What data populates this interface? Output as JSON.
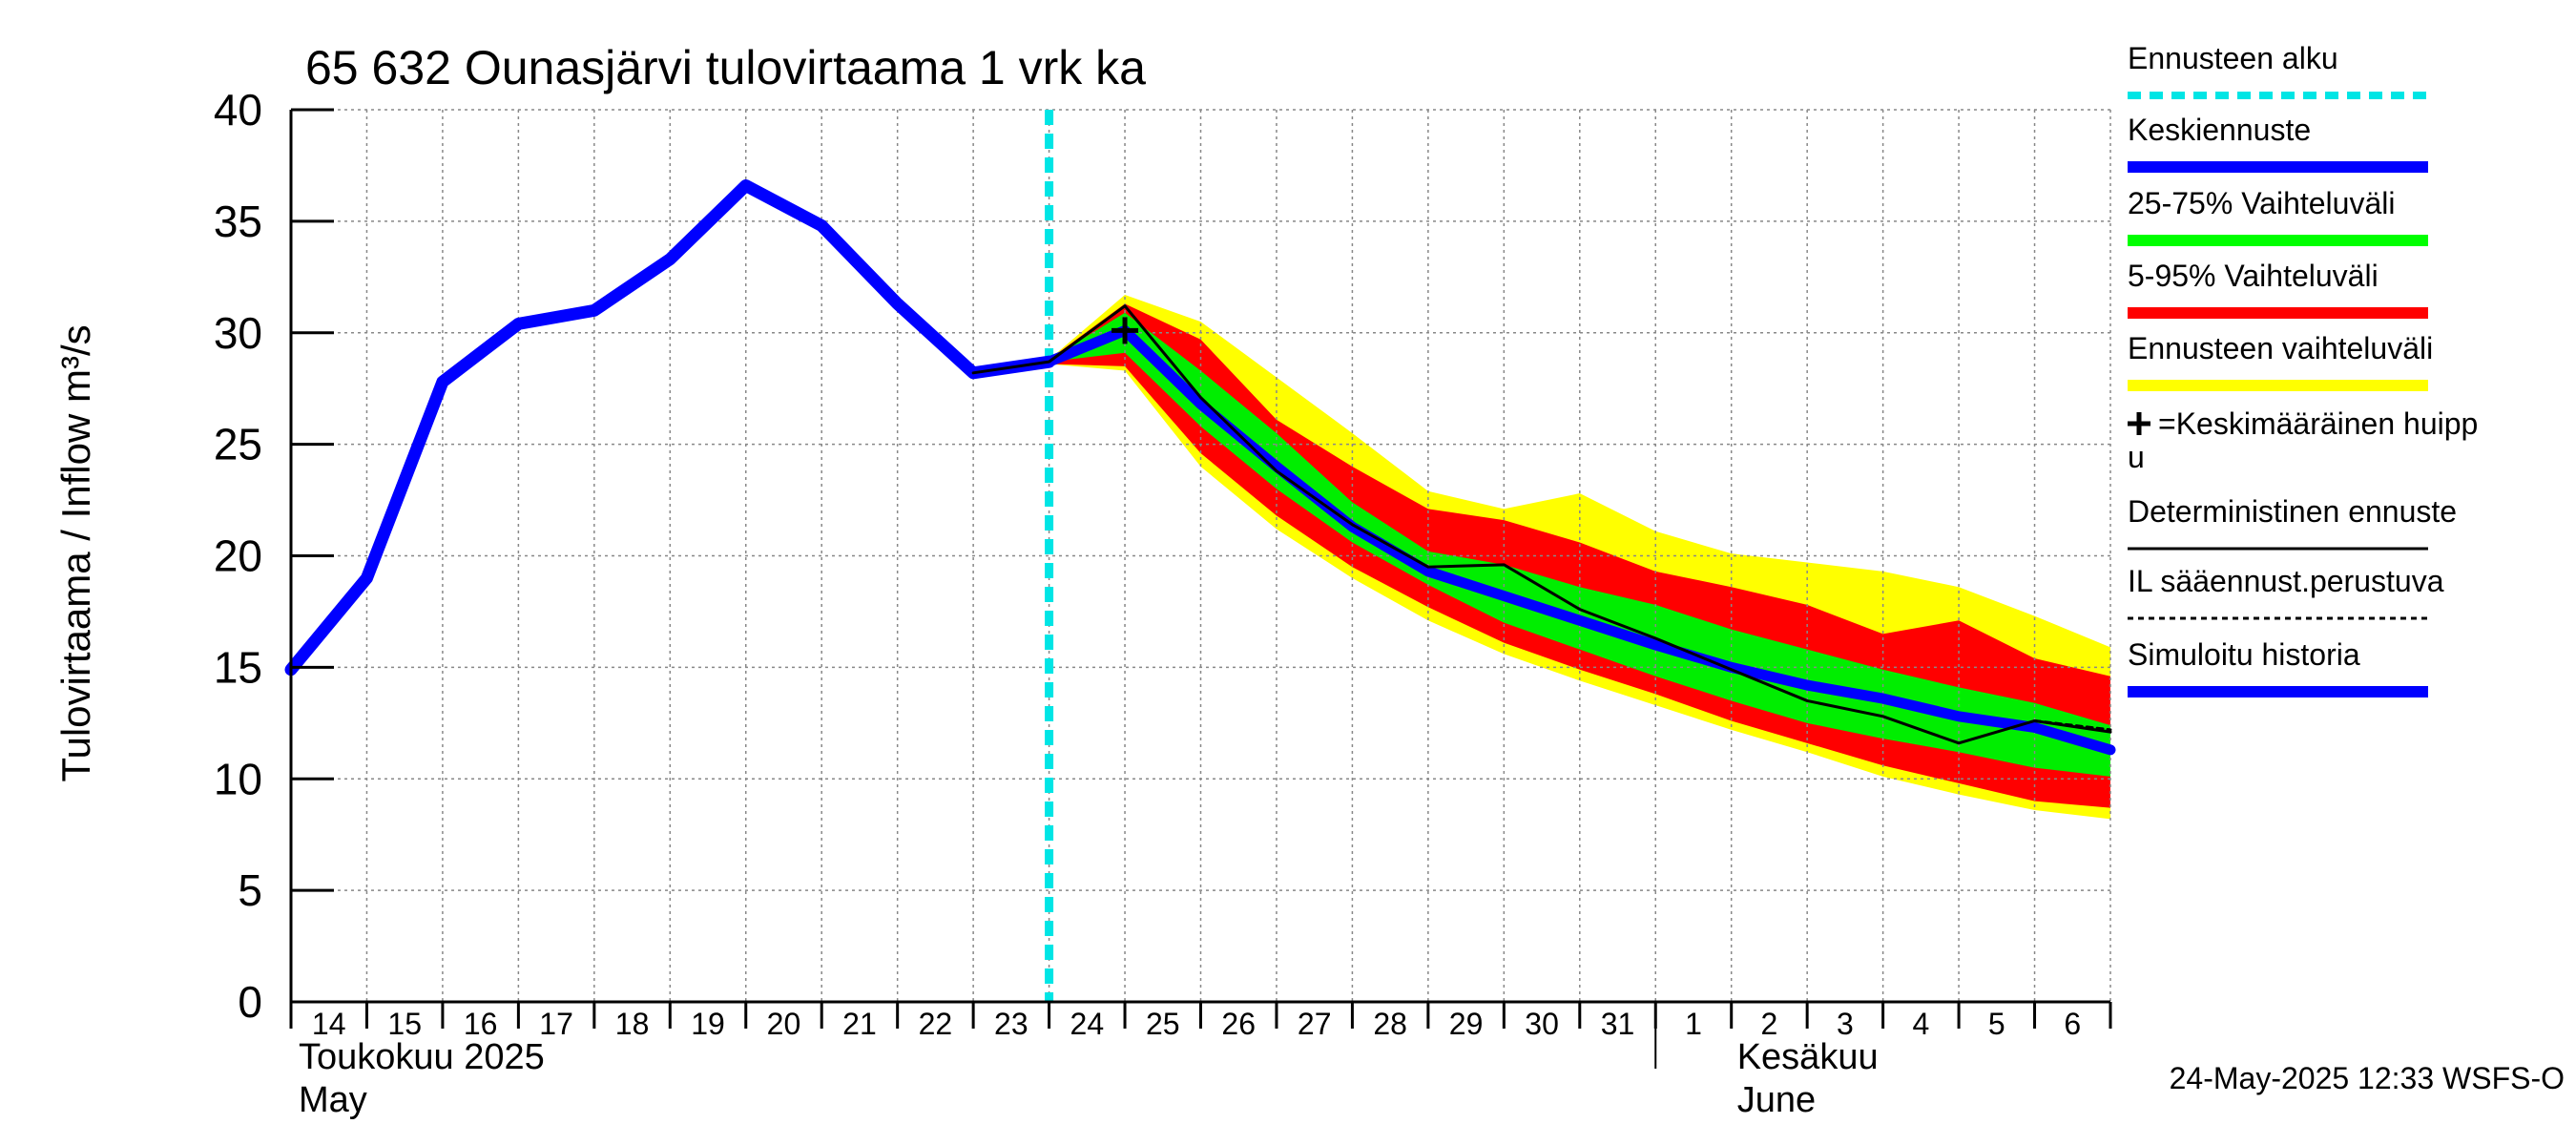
{
  "chart_data": {
    "type": "area",
    "title": "65 632 Ounasjärvi tulovirtaama 1 vrk ka",
    "ylabel": "Tulovirtaama / Inflow    m³/s",
    "ylim": [
      0,
      40
    ],
    "yticks": [
      "0",
      "5",
      "10",
      "15",
      "20",
      "25",
      "30",
      "35",
      "40"
    ],
    "grid": true,
    "x_days": [
      "14",
      "15",
      "16",
      "17",
      "18",
      "19",
      "20",
      "21",
      "22",
      "23",
      "24",
      "25",
      "26",
      "27",
      "28",
      "29",
      "30",
      "31",
      "1",
      "2",
      "3",
      "4",
      "5",
      "6"
    ],
    "month_labels": [
      {
        "line1": "Toukokuu  2025",
        "line2": "May"
      },
      {
        "line1": "Kesäkuu",
        "line2": "June"
      }
    ],
    "forecast_start_x": 10.0,
    "series": [
      {
        "name": "Simuloitu historia",
        "x": [
          0,
          1,
          2,
          3,
          4,
          5,
          6,
          7,
          8,
          9,
          10
        ],
        "values": [
          14.9,
          19.0,
          27.8,
          30.4,
          31.0,
          33.3,
          36.6,
          34.8,
          31.3,
          28.2,
          28.7
        ]
      },
      {
        "name": "Keskiennuste",
        "x": [
          10,
          11,
          12,
          13,
          14,
          15,
          16,
          17,
          18,
          19,
          20,
          21,
          22,
          23,
          24
        ],
        "values": [
          28.7,
          30.1,
          26.8,
          24.0,
          21.3,
          19.3,
          18.2,
          17.1,
          16.0,
          15.0,
          14.2,
          13.6,
          12.8,
          12.3,
          11.3
        ]
      },
      {
        "name": "Deterministinen ennuste",
        "x": [
          9,
          10,
          11,
          12,
          13,
          14,
          15,
          16,
          17,
          18,
          19,
          20,
          21,
          22,
          23,
          24
        ],
        "values": [
          28.2,
          28.7,
          31.2,
          27.1,
          23.8,
          21.4,
          19.5,
          19.6,
          17.6,
          16.3,
          14.9,
          13.5,
          12.8,
          11.6,
          12.6,
          12.1
        ]
      },
      {
        "name": "IL sääennust.perustuva",
        "x": [
          23,
          24
        ],
        "values": [
          12.6,
          12.2
        ]
      }
    ],
    "bands": [
      {
        "name": "Ennusteen vaihteluväli",
        "x": [
          10,
          11,
          12,
          13,
          14,
          15,
          16,
          17,
          18,
          19,
          20,
          21,
          22,
          23,
          24
        ],
        "lower": [
          28.6,
          28.3,
          24.0,
          21.2,
          19.0,
          17.1,
          15.6,
          14.4,
          13.3,
          12.2,
          11.2,
          10.1,
          9.3,
          8.6,
          8.2
        ],
        "upper": [
          28.8,
          31.7,
          30.5,
          28.0,
          25.5,
          22.9,
          22.1,
          22.8,
          21.1,
          20.1,
          19.7,
          19.3,
          18.6,
          17.3,
          15.9
        ]
      },
      {
        "name": "5-95% Vaihteluväli",
        "x": [
          10,
          11,
          12,
          13,
          14,
          15,
          16,
          17,
          18,
          19,
          20,
          21,
          22,
          23,
          24
        ],
        "lower": [
          28.6,
          28.5,
          24.6,
          21.8,
          19.5,
          17.7,
          16.1,
          14.9,
          13.8,
          12.6,
          11.6,
          10.6,
          9.8,
          9.0,
          8.7
        ],
        "upper": [
          28.8,
          31.3,
          29.7,
          26.1,
          24.0,
          22.1,
          21.6,
          20.6,
          19.3,
          18.6,
          17.8,
          16.5,
          17.1,
          15.4,
          14.6
        ]
      },
      {
        "name": "25-75% Vaihteluväli",
        "x": [
          10,
          11,
          12,
          13,
          14,
          15,
          16,
          17,
          18,
          19,
          20,
          21,
          22,
          23,
          24
        ],
        "lower": [
          28.7,
          29.1,
          25.8,
          23.0,
          20.6,
          18.7,
          17.0,
          15.8,
          14.6,
          13.5,
          12.5,
          11.8,
          11.2,
          10.5,
          10.1
        ],
        "upper": [
          28.8,
          30.9,
          28.3,
          25.5,
          22.4,
          20.2,
          19.6,
          18.6,
          17.8,
          16.7,
          15.8,
          14.9,
          14.1,
          13.4,
          12.4
        ]
      }
    ],
    "peak_marker": {
      "label": "+=Keskimääräinen huippu",
      "x": 11,
      "y": 30.1
    },
    "legend": [
      {
        "label": "Ennusteen alku",
        "color": "#00ffff",
        "style": "dashed"
      },
      {
        "label": "Keskiennuste",
        "color": "#0000ff",
        "style": "thick"
      },
      {
        "label": "25-75% Vaihteluväli",
        "color": "#00ff00",
        "style": "thick"
      },
      {
        "label": "5-95% Vaihteluväli",
        "color": "#ff0000",
        "style": "thick"
      },
      {
        "label": "Ennusteen vaihteluväli",
        "color": "#ffff00",
        "style": "thick"
      },
      {
        "label": "+=Keskimääräinen huipp",
        "label2": "u",
        "color": "#000000",
        "style": "none"
      },
      {
        "label": "Deterministinen ennuste",
        "color": "#000000",
        "style": "thin"
      },
      {
        "label": "IL sääennust.perustuva",
        "color": "#000000",
        "style": "dotted"
      },
      {
        "label": "Simuloitu historia",
        "color": "#0000ff",
        "style": "thick"
      }
    ],
    "colors": {
      "cyan": "#00e5e5",
      "blue": "#0000ff",
      "green": "#00ee00",
      "red": "#ff0000",
      "yellow": "#ffff00",
      "black": "#000000",
      "grid": "#888888"
    }
  },
  "footer": "24-May-2025 12:33 WSFS-O"
}
